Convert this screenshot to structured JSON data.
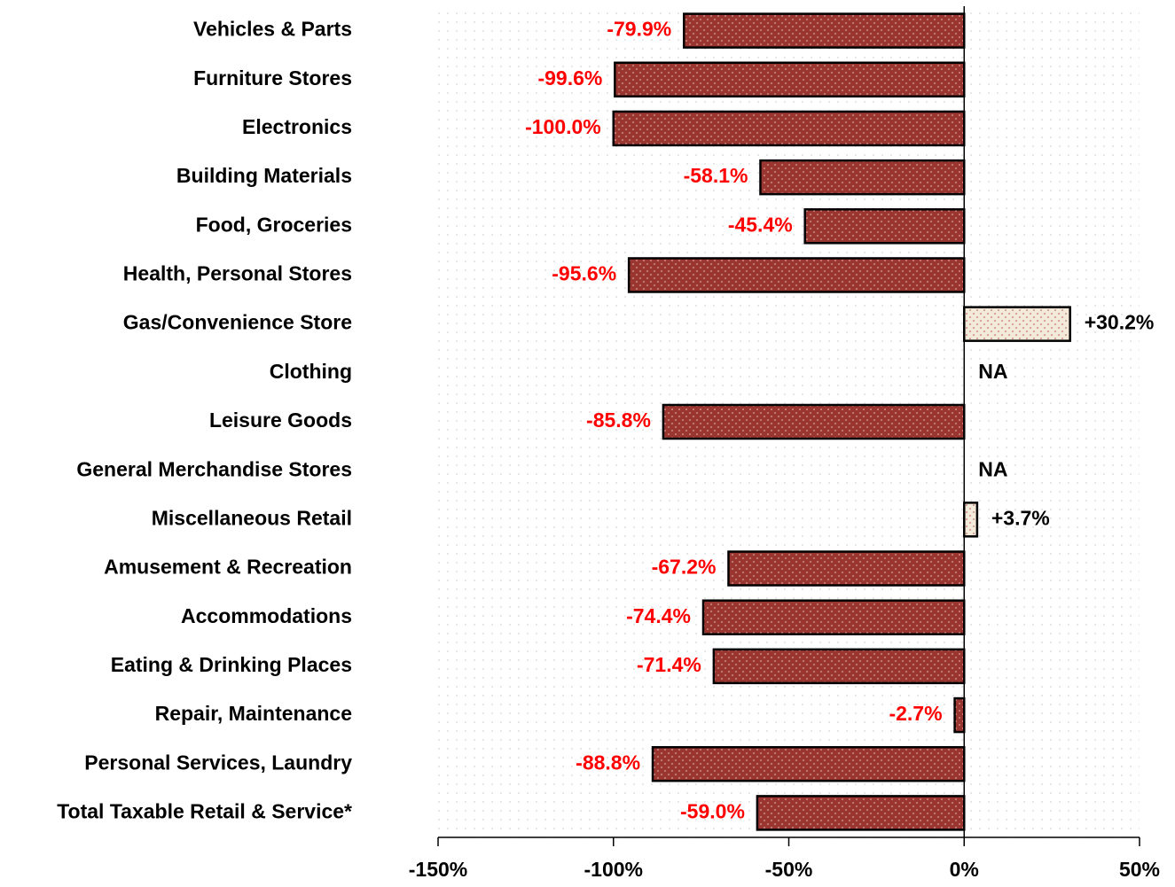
{
  "chart_data": {
    "type": "hbar",
    "categories": [
      "Vehicles & Parts",
      "Furniture Stores",
      "Electronics",
      "Building Materials",
      "Food, Groceries",
      "Health, Personal Stores",
      "Gas/Convenience Store",
      "Clothing",
      "Leisure Goods",
      "General Merchandise Stores",
      "Miscellaneous Retail",
      "Amusement & Recreation",
      "Accommodations",
      "Eating & Drinking Places",
      "Repair, Maintenance",
      "Personal Services, Laundry",
      "Total Taxable Retail & Service*"
    ],
    "values": [
      -79.9,
      -99.6,
      -100.0,
      -58.1,
      -45.4,
      -95.6,
      30.2,
      null,
      -85.8,
      null,
      3.7,
      -67.2,
      -74.4,
      -71.4,
      -2.7,
      -88.8,
      -59.0
    ],
    "value_labels": [
      "-79.9%",
      "-99.6%",
      "-100.0%",
      "-58.1%",
      "-45.4%",
      "-95.6%",
      "+30.2%",
      "NA",
      "-85.8%",
      "NA",
      "+3.7%",
      "-67.2%",
      "-74.4%",
      "-71.4%",
      "-2.7%",
      "-88.8%",
      "-59.0%"
    ],
    "negative_color": "#9b3530",
    "positive_color": "#f3ead9",
    "negative_label_color": "#ff0000",
    "positive_label_color": "#000000",
    "xlim": [
      -150,
      50
    ],
    "xticks": [
      {
        "value": -150,
        "label": "-150%"
      },
      {
        "value": -100,
        "label": "-100%"
      },
      {
        "value": -50,
        "label": "-50%"
      },
      {
        "value": 0,
        "label": "0%"
      },
      {
        "value": 50,
        "label": "50%"
      }
    ]
  }
}
